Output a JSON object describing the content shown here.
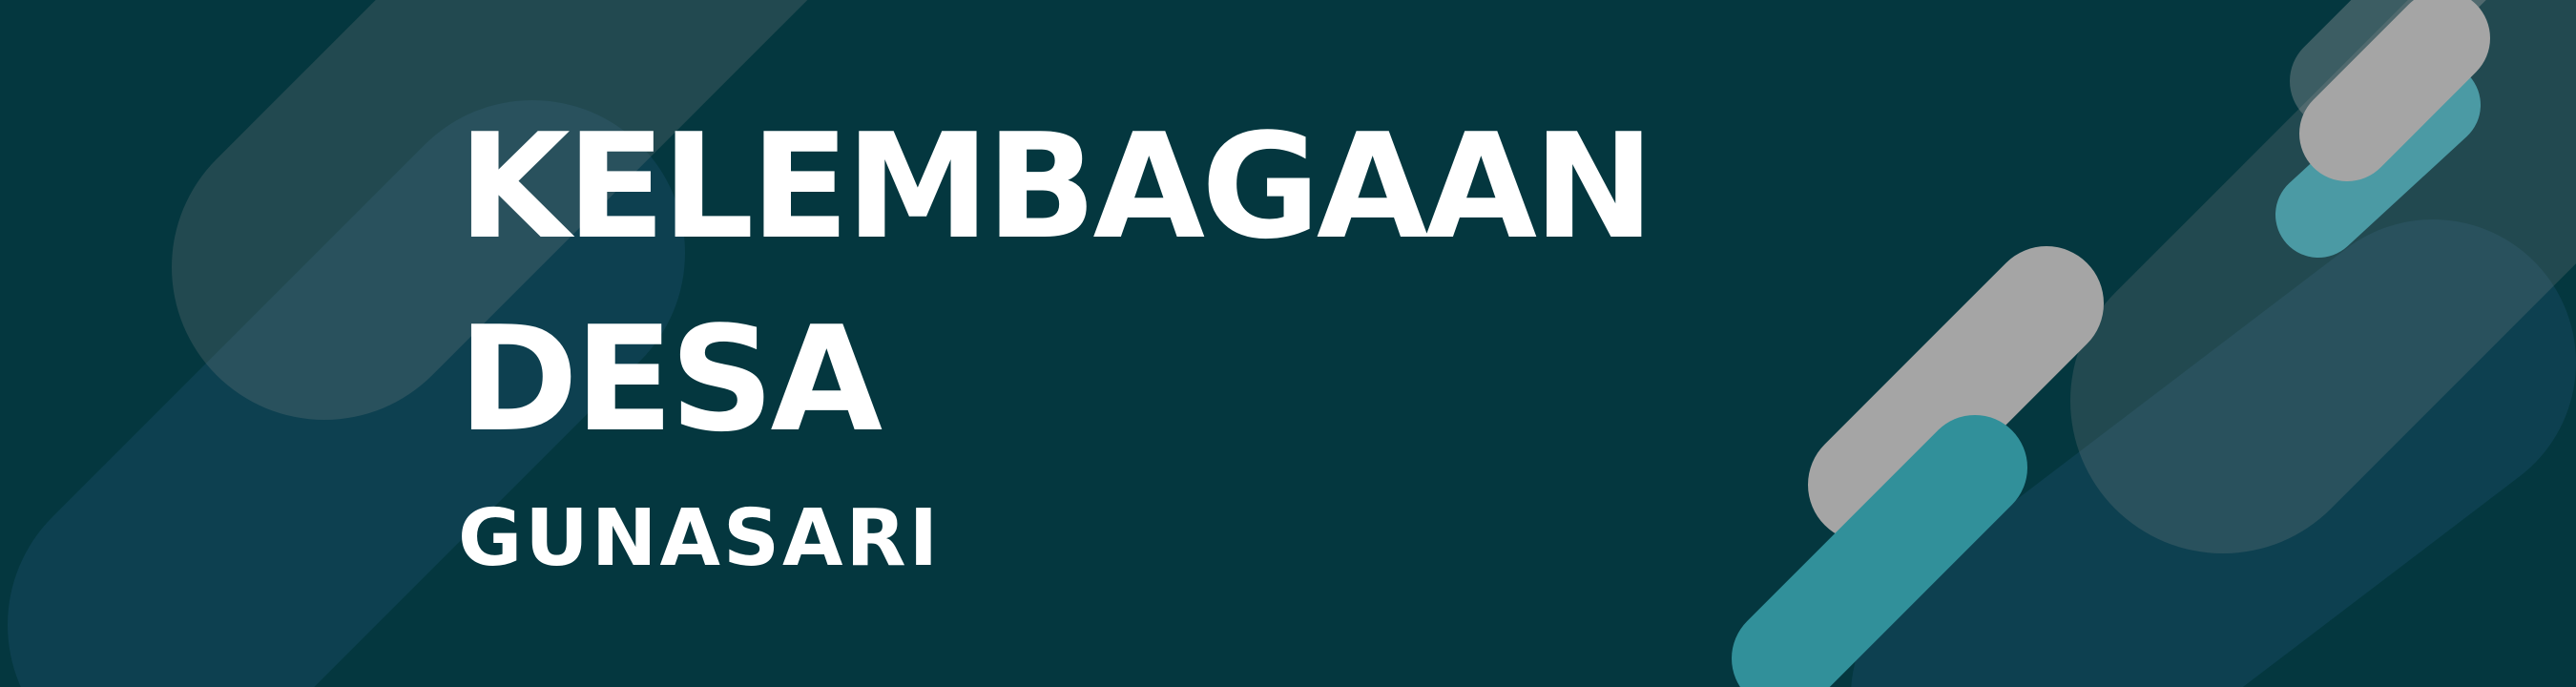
{
  "banner": {
    "title_line_1": "KELEMBAGAAN",
    "title_line_2": "DESA",
    "subtitle": "GUNASARI"
  },
  "colors": {
    "background": "#04373f",
    "text": "#ffffff",
    "pill_dark_teal": "#0d4050",
    "pill_gray_translucent": "#8f8f8f",
    "pill_gray": "#a5a5a5",
    "pill_teal": "#31909a",
    "pill_light_teal": "#4b9aa4"
  }
}
